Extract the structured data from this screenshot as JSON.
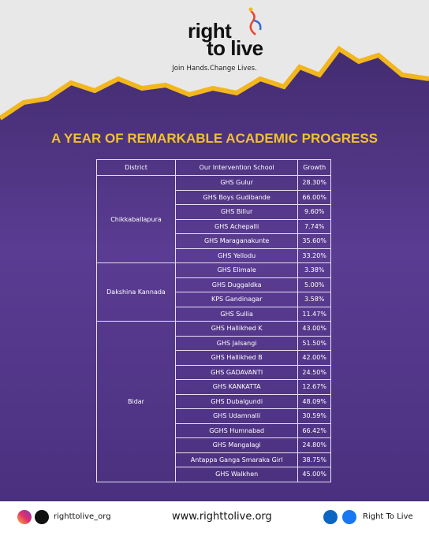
{
  "logo": {
    "line1": "right",
    "line2": "to live"
  },
  "tagline": "Join Hands.Change Lives.",
  "title": "A YEAR OF REMARKABLE ACADEMIC PROGRESS",
  "table": {
    "header": [
      "District",
      "Our Intervention School",
      "Growth"
    ],
    "groups": [
      {
        "district": "Chikkaballapura",
        "rows": [
          [
            "GHS Gulur",
            "28.30%"
          ],
          [
            "GHS Boys Gudibande",
            "66.00%"
          ],
          [
            "GHS Billur",
            "9.60%"
          ],
          [
            "GHS Achepalli",
            "7.74%"
          ],
          [
            "GHS Maraganakunte",
            "35.60%"
          ],
          [
            "GHS Yellodu",
            "33.20%"
          ]
        ]
      },
      {
        "district": "Dakshina Kannada",
        "rows": [
          [
            "GHS Elimale",
            "3.38%"
          ],
          [
            "GHS Duggaldka",
            "5.00%"
          ],
          [
            "KPS Gandinagar",
            "3.58%"
          ],
          [
            "GHS Sullia",
            "11.47%"
          ]
        ]
      },
      {
        "district": "Bidar",
        "rows": [
          [
            "GHS Hallikhed K",
            "43.00%"
          ],
          [
            "GHS Jalsangi",
            "51.50%"
          ],
          [
            "GHS Hallikhed B",
            "42.00%"
          ],
          [
            "GHS GADAVANTI",
            "24.50%"
          ],
          [
            "GHS KANKATTA",
            "12.67%"
          ],
          [
            "GHS Dubalgundi",
            "48.09%"
          ],
          [
            "GHS Udamnalli",
            "30.59%"
          ],
          [
            "GGHS Humnabad",
            "66.42%"
          ],
          [
            "GHS Mangalagi",
            "24.80%"
          ],
          [
            "Antappa Ganga Smaraka Girl",
            "38.75%"
          ],
          [
            "GHS Walkhen",
            "45.00%"
          ]
        ]
      }
    ]
  },
  "footer": {
    "handle": "righttolive_org",
    "website": "www.righttolive.org",
    "org": "Right To Live"
  }
}
